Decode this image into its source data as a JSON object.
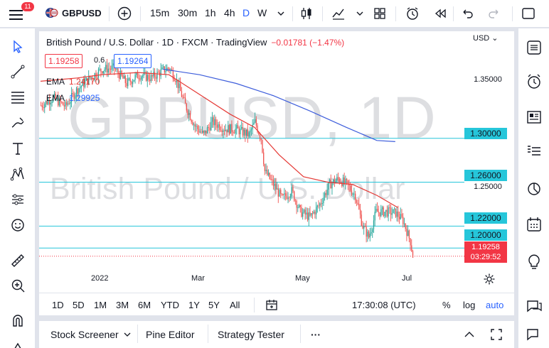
{
  "topbar": {
    "notifications": "11",
    "symbol": "GBPUSD",
    "intervals": [
      "15m",
      "30m",
      "1h",
      "4h",
      "D",
      "W"
    ],
    "active_interval": "D"
  },
  "legend": {
    "title": "British Pound / U.S. Dollar · 1D · FXCM · TradingView",
    "change": "−0.01781 (−1.47%)",
    "bid": "1.19258",
    "spread": "0.6",
    "ask": "1.19264",
    "ema1_label": "EMA",
    "ema1_value": "1.24170",
    "ema2_label": "EMA",
    "ema2_value": "1.29925"
  },
  "watermark": {
    "big": "GBPUSD, 1D",
    "small": "British Pound / U.S. Dollar"
  },
  "axis": {
    "currency": "USD",
    "y_labels": [
      "1.35000",
      "1.25000"
    ],
    "x_labels": [
      "2022",
      "Mar",
      "May",
      "Jul"
    ]
  },
  "horizontal_lines": [
    "1.30000",
    "1.26000",
    "1.22000",
    "1.20000"
  ],
  "current_price": {
    "price": "1.19258",
    "countdown": "03:29:52"
  },
  "ranges": [
    "1D",
    "5D",
    "1M",
    "3M",
    "6M",
    "YTD",
    "1Y",
    "5Y",
    "All"
  ],
  "bottom_controls": {
    "time": "17:30:08 (UTC)",
    "percent": "%",
    "log": "log",
    "auto": "auto"
  },
  "bottom_tabs": {
    "screener": "Stock Screener",
    "pine": "Pine Editor",
    "tester": "Strategy Tester",
    "more": "···"
  },
  "colors": {
    "accent": "#2962ff",
    "up": "#26a69a",
    "down": "#ef5350",
    "ema_fast": "#e53935",
    "ema_slow": "#3d5ddb",
    "hline": "#26c6da"
  },
  "chart_data": {
    "type": "candlestick",
    "title": "British Pound / U.S. Dollar · 1D · FXCM",
    "ylim": [
      1.1775,
      1.395
    ],
    "x_ticks": [
      "2022",
      "Mar",
      "May",
      "Jul"
    ],
    "path_points": [
      [
        0,
        1.33
      ],
      [
        10,
        1.337
      ],
      [
        20,
        1.329
      ],
      [
        30,
        1.345
      ],
      [
        40,
        1.355
      ],
      [
        50,
        1.363
      ],
      [
        60,
        1.364
      ],
      [
        70,
        1.35
      ],
      [
        80,
        1.358
      ],
      [
        90,
        1.355
      ],
      [
        100,
        1.362
      ],
      [
        105,
        1.364
      ],
      [
        110,
        1.355
      ],
      [
        118,
        1.33
      ],
      [
        126,
        1.311
      ],
      [
        133,
        1.303
      ],
      [
        140,
        1.315
      ],
      [
        150,
        1.309
      ],
      [
        160,
        1.308
      ],
      [
        170,
        1.303
      ],
      [
        175,
        1.315
      ],
      [
        180,
        1.3
      ],
      [
        183,
        1.27
      ],
      [
        190,
        1.258
      ],
      [
        197,
        1.245
      ],
      [
        205,
        1.252
      ],
      [
        212,
        1.233
      ],
      [
        220,
        1.228
      ],
      [
        228,
        1.24
      ],
      [
        236,
        1.258
      ],
      [
        243,
        1.263
      ],
      [
        250,
        1.258
      ],
      [
        257,
        1.248
      ],
      [
        263,
        1.22
      ],
      [
        268,
        1.21
      ],
      [
        274,
        1.233
      ],
      [
        282,
        1.233
      ],
      [
        290,
        1.232
      ],
      [
        296,
        1.225
      ],
      [
        302,
        1.206
      ],
      [
        304,
        1.193
      ]
    ],
    "ema_fast": [
      [
        0,
        1.352
      ],
      [
        30,
        1.355
      ],
      [
        50,
        1.358
      ],
      [
        80,
        1.36
      ],
      [
        105,
        1.358
      ],
      [
        130,
        1.34
      ],
      [
        155,
        1.322
      ],
      [
        175,
        1.31
      ],
      [
        195,
        1.285
      ],
      [
        215,
        1.265
      ],
      [
        235,
        1.26
      ],
      [
        255,
        1.258
      ],
      [
        275,
        1.248
      ],
      [
        292,
        1.237
      ]
    ],
    "ema_slow": [
      [
        100,
        1.363
      ],
      [
        130,
        1.358
      ],
      [
        160,
        1.35
      ],
      [
        190,
        1.339
      ],
      [
        220,
        1.325
      ],
      [
        250,
        1.31
      ],
      [
        275,
        1.298
      ],
      [
        290,
        1.297
      ]
    ],
    "hlines": [
      1.3,
      1.26,
      1.22,
      1.2
    ],
    "last_price": 1.19258
  }
}
